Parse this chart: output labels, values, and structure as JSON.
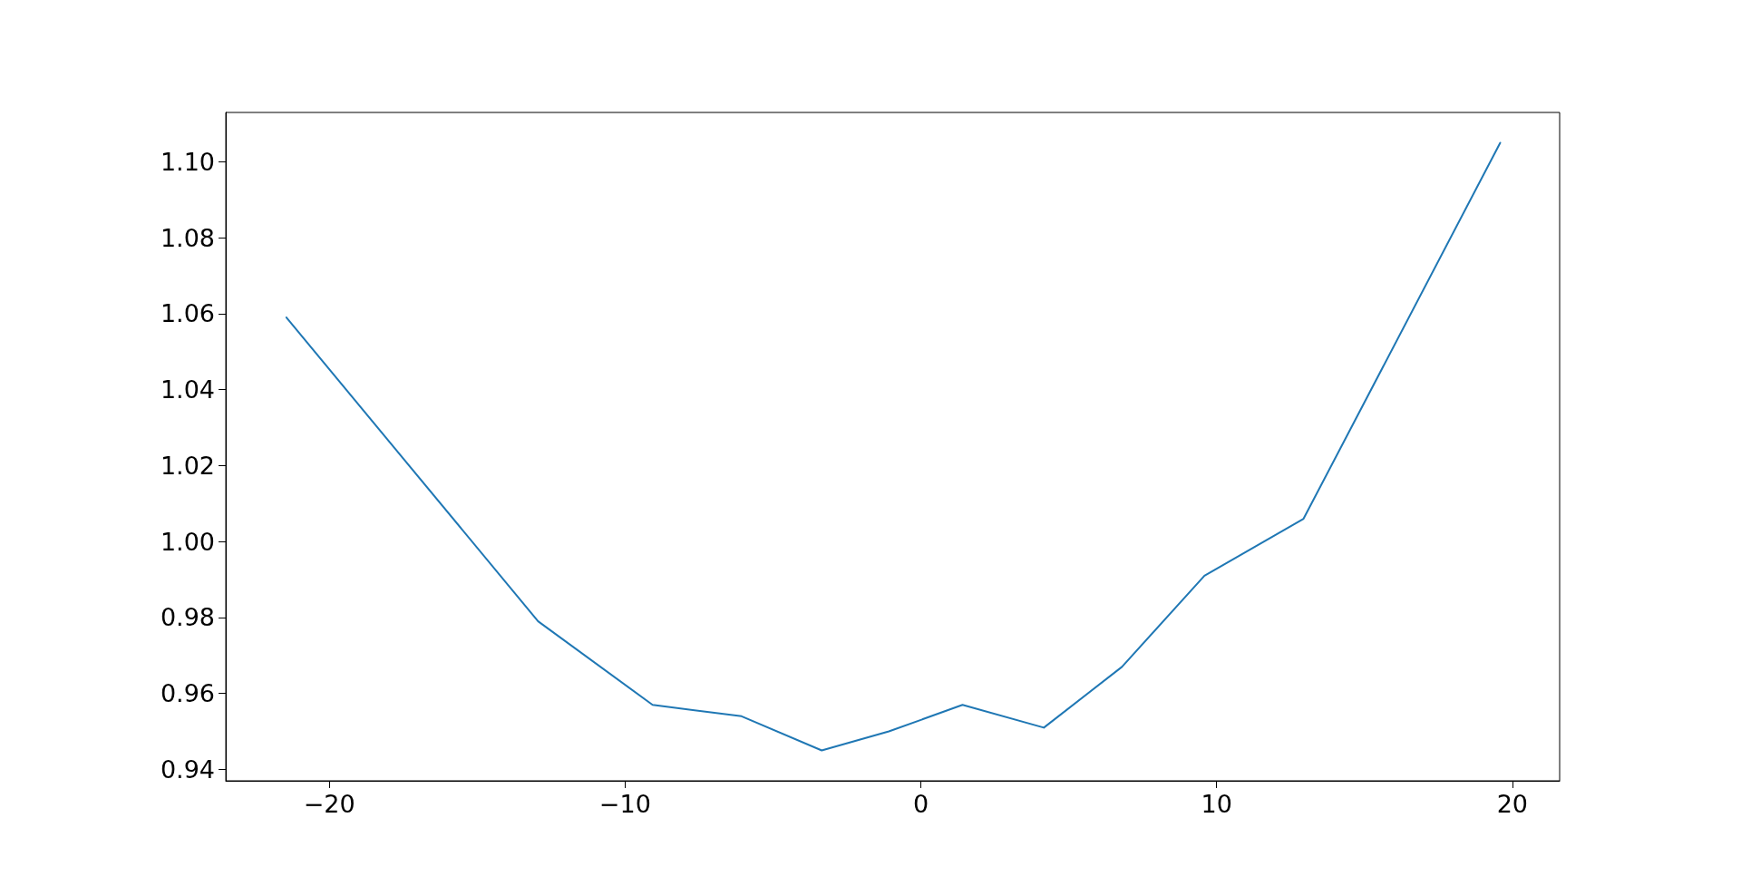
{
  "chart_data": {
    "type": "line",
    "x": [
      -21.45,
      -12.94,
      -9.07,
      -6.06,
      -3.35,
      -1.08,
      1.41,
      4.16,
      6.8,
      9.59,
      12.94,
      19.59
    ],
    "series": [
      {
        "color": "#1f77b4",
        "values": [
          1.059,
          0.979,
          0.957,
          0.954,
          0.945,
          0.95,
          0.957,
          0.951,
          0.967,
          0.991,
          1.006,
          1.105
        ]
      }
    ],
    "xlim": [
      -23.5,
      21.6
    ],
    "xticks": [
      {
        "value": -20,
        "label": "−20"
      },
      {
        "value": -10,
        "label": "−10"
      },
      0,
      10,
      20
    ],
    "ylim": [
      0.937,
      1.113
    ],
    "yticks": [
      {
        "value": 0.94,
        "label": "0.94"
      },
      {
        "value": 0.96,
        "label": "0.96"
      },
      {
        "value": 0.98,
        "label": "0.98"
      },
      {
        "value": 1.0,
        "label": "1.00"
      },
      {
        "value": 1.02,
        "label": "1.02"
      },
      {
        "value": 1.04,
        "label": "1.04"
      },
      {
        "value": 1.06,
        "label": "1.06"
      },
      {
        "value": 1.08,
        "label": "1.08"
      },
      {
        "value": 1.1,
        "label": "1.10"
      }
    ],
    "grid": false,
    "marker": "none",
    "line_style": "solid"
  }
}
